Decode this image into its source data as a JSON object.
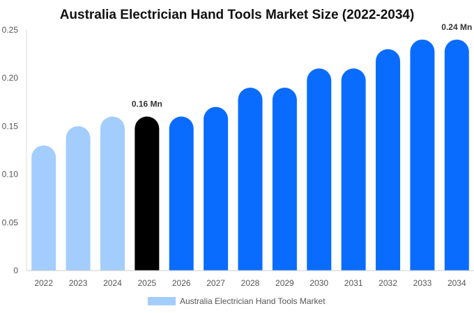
{
  "chart_data": {
    "type": "bar",
    "title": "Australia Electrician Hand Tools Market Size (2022-2034)",
    "xlabel": "",
    "ylabel": "",
    "categories": [
      "2022",
      "2023",
      "2024",
      "2025",
      "2026",
      "2027",
      "2028",
      "2029",
      "2030",
      "2031",
      "2032",
      "2033",
      "2034"
    ],
    "series": [
      {
        "name": "Australia Electrician Hand Tools Market",
        "values": [
          0.13,
          0.15,
          0.16,
          0.16,
          0.16,
          0.17,
          0.19,
          0.19,
          0.21,
          0.21,
          0.23,
          0.24,
          0.24
        ]
      }
    ],
    "ylim": [
      0,
      0.25
    ],
    "yticks": [
      "0",
      "0.05",
      "0.10",
      "0.15",
      "0.20",
      "0.25"
    ],
    "data_labels": [
      {
        "category": "2025",
        "text": "0.16 Mn"
      },
      {
        "category": "2034",
        "text": "0.24 Mn"
      }
    ],
    "bar_colors": {
      "historical": "#a3cdfd",
      "current": "#000000",
      "forecast": "#0a6cff"
    },
    "color_groups": [
      "historical",
      "historical",
      "historical",
      "current",
      "forecast",
      "forecast",
      "forecast",
      "forecast",
      "forecast",
      "forecast",
      "forecast",
      "forecast",
      "forecast"
    ],
    "legend": {
      "position": "bottom",
      "swatch_color": "#a3cdfd"
    },
    "grid": false
  }
}
